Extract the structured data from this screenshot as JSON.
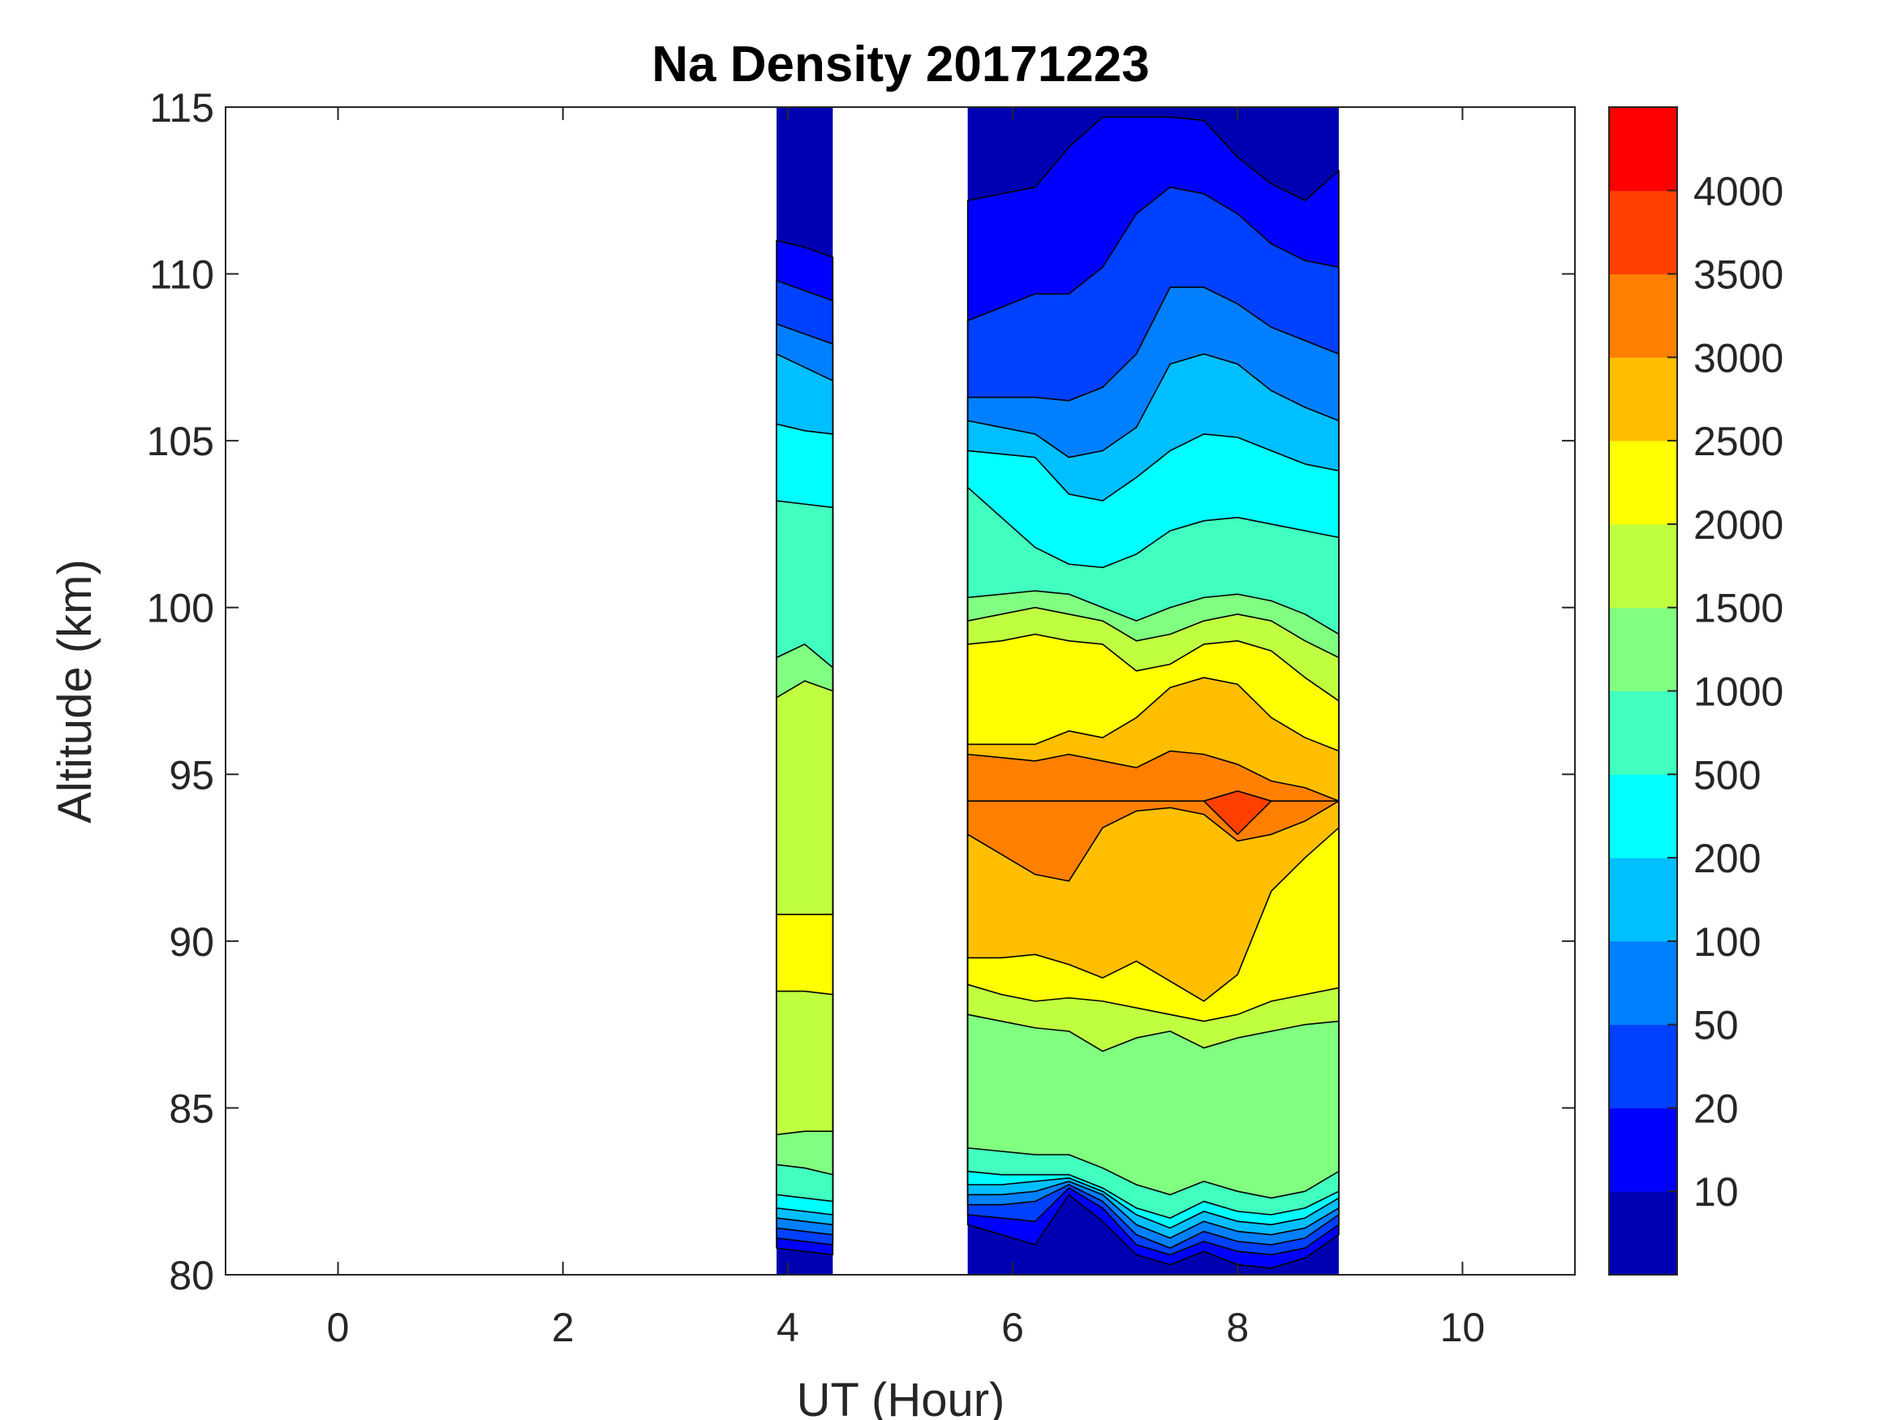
{
  "chart_data": {
    "type": "contourf",
    "title": "Na Density 20171223",
    "xlabel": "UT (Hour)",
    "ylabel": "Altitude (km)",
    "xlim": [
      -1,
      11
    ],
    "ylim": [
      80,
      115
    ],
    "xticks": [
      0,
      2,
      4,
      6,
      8,
      10
    ],
    "xtick_labels": [
      "0",
      "2",
      "4",
      "6",
      "8",
      "10"
    ],
    "yticks": [
      80,
      85,
      90,
      95,
      100,
      105,
      110,
      115
    ],
    "ytick_labels": [
      "80",
      "85",
      "90",
      "95",
      "100",
      "105",
      "110",
      "115"
    ],
    "levels": [
      10,
      20,
      50,
      100,
      200,
      500,
      1000,
      1500,
      2000,
      2500,
      3000,
      3500,
      4000
    ],
    "colorbar_labels": [
      "10",
      "20",
      "50",
      "100",
      "200",
      "500",
      "1000",
      "1500",
      "2000",
      "2500",
      "3000",
      "3500",
      "4000"
    ],
    "colors": [
      "#0000b3",
      "#0000ff",
      "#0040ff",
      "#0080ff",
      "#00bfff",
      "#00ffff",
      "#40ffbf",
      "#80ff80",
      "#bfff40",
      "#ffff00",
      "#ffbf00",
      "#ff8000",
      "#ff4000",
      "#ff0000"
    ],
    "blocks": [
      {
        "times": [
          3.9,
          4.15,
          4.4
        ],
        "peak": [
          89.6,
          89.6,
          89.6
        ],
        "upper_crossings": [
          [
            111,
            110.8,
            110.5
          ],
          [
            109.8,
            109.5,
            109.2
          ],
          [
            108.5,
            108.2,
            107.9
          ],
          [
            107.6,
            107.2,
            106.8
          ],
          [
            105.5,
            105.3,
            105.2
          ],
          [
            103.2,
            103.1,
            103
          ],
          [
            98.5,
            98.9,
            98.2
          ],
          [
            97.3,
            97.8,
            97.5
          ],
          [
            90.8,
            90.8,
            90.8
          ],
          [
            null,
            null,
            null
          ],
          [
            null,
            null,
            null
          ],
          [
            null,
            null,
            null
          ],
          [
            null,
            null,
            null
          ]
        ],
        "lower_crossings": [
          [
            80.8,
            80.7,
            80.6
          ],
          [
            81.1,
            81,
            80.9
          ],
          [
            81.4,
            81.3,
            81.2
          ],
          [
            81.7,
            81.6,
            81.5
          ],
          [
            82,
            81.9,
            81.8
          ],
          [
            82.4,
            82.3,
            82.2
          ],
          [
            83.3,
            83.2,
            83
          ],
          [
            84.2,
            84.3,
            84.3
          ],
          [
            88.5,
            88.5,
            88.4
          ],
          [
            null,
            null,
            null
          ],
          [
            null,
            null,
            null
          ],
          [
            null,
            null,
            null
          ],
          [
            null,
            null,
            null
          ]
        ]
      },
      {
        "times": [
          5.6,
          5.9,
          6.2,
          6.5,
          6.8,
          7.1,
          7.4,
          7.7,
          8.0,
          8.3,
          8.6,
          8.9
        ],
        "peak": [
          94.2,
          94.2,
          94.2,
          94.2,
          94.2,
          94.2,
          94.2,
          94.2,
          94.2,
          94.2,
          94.2,
          94.2
        ],
        "upper_crossings": [
          [
            112.2,
            112.4,
            112.6,
            113.8,
            114.7,
            114.7,
            114.7,
            114.6,
            113.5,
            112.7,
            112.2,
            113.1
          ],
          [
            108.6,
            109,
            109.4,
            109.4,
            110.2,
            111.8,
            112.6,
            112.4,
            111.8,
            110.9,
            110.4,
            110.2
          ],
          [
            106.3,
            106.3,
            106.3,
            106.2,
            106.6,
            107.6,
            109.6,
            109.6,
            109.1,
            108.4,
            108,
            107.6
          ],
          [
            105.6,
            105.4,
            105.2,
            104.5,
            104.7,
            105.4,
            107.3,
            107.6,
            107.3,
            106.5,
            106,
            105.6
          ],
          [
            104.7,
            104.6,
            104.5,
            103.4,
            103.2,
            103.9,
            104.7,
            105.2,
            105.1,
            104.7,
            104.3,
            104.1
          ],
          [
            103.6,
            102.7,
            101.8,
            101.3,
            101.2,
            101.6,
            102.3,
            102.6,
            102.7,
            102.5,
            102.3,
            102.1
          ],
          [
            100.3,
            100.4,
            100.5,
            100.4,
            100,
            99.6,
            100,
            100.3,
            100.4,
            100.2,
            99.8,
            99.2
          ],
          [
            99.6,
            99.8,
            100,
            99.8,
            99.6,
            99,
            99.2,
            99.6,
            99.8,
            99.6,
            99,
            98.5
          ],
          [
            98.9,
            99,
            99.2,
            99,
            98.9,
            98.1,
            98.3,
            98.9,
            99,
            98.7,
            97.9,
            97.2
          ],
          [
            95.9,
            95.9,
            95.9,
            96.3,
            96.1,
            96.7,
            97.6,
            97.9,
            97.7,
            96.7,
            96.1,
            95.7
          ],
          [
            95.6,
            95.5,
            95.4,
            95.6,
            95.4,
            95.2,
            95.7,
            95.6,
            95.3,
            94.8,
            94.6,
            null
          ],
          [
            null,
            null,
            null,
            null,
            null,
            null,
            null,
            null,
            94.5,
            null,
            null,
            null
          ],
          [
            null,
            null,
            null,
            null,
            null,
            null,
            null,
            null,
            null,
            null,
            null,
            null
          ]
        ],
        "lower_crossings": [
          [
            81.5,
            81.2,
            80.9,
            82.4,
            81.6,
            80.6,
            80.3,
            80.7,
            80.3,
            80.2,
            80.5,
            81.2
          ],
          [
            81.8,
            81.7,
            81.6,
            82.6,
            82,
            80.9,
            80.6,
            81,
            80.7,
            80.6,
            80.8,
            81.5
          ],
          [
            82.1,
            82.1,
            82.2,
            82.7,
            82.2,
            81.2,
            80.8,
            81.3,
            81,
            80.9,
            81.1,
            81.8
          ],
          [
            82.4,
            82.4,
            82.5,
            82.8,
            82.4,
            81.5,
            81.1,
            81.6,
            81.3,
            81.2,
            81.4,
            82
          ],
          [
            82.7,
            82.7,
            82.8,
            82.9,
            82.5,
            81.8,
            81.4,
            81.9,
            81.6,
            81.5,
            81.7,
            82.3
          ],
          [
            83.1,
            83,
            83,
            83,
            82.6,
            82,
            81.7,
            82.2,
            81.9,
            81.8,
            82,
            82.5
          ],
          [
            83.8,
            83.7,
            83.6,
            83.6,
            83.2,
            82.7,
            82.4,
            82.8,
            82.5,
            82.3,
            82.5,
            83.1
          ],
          [
            87.8,
            87.6,
            87.4,
            87.3,
            86.7,
            87.1,
            87.3,
            86.8,
            87.1,
            87.3,
            87.5,
            87.6
          ],
          [
            88.7,
            88.4,
            88.2,
            88.3,
            88.2,
            88,
            87.8,
            87.6,
            87.8,
            88.2,
            88.4,
            88.6
          ],
          [
            89.5,
            89.5,
            89.6,
            89.3,
            88.9,
            89.4,
            88.8,
            88.2,
            89,
            91.5,
            92.5,
            93.4
          ],
          [
            93.2,
            92.6,
            92,
            91.8,
            93.4,
            93.9,
            94.0,
            93.8,
            93,
            93.2,
            93.6,
            null
          ],
          [
            null,
            null,
            null,
            null,
            null,
            null,
            null,
            null,
            93.2,
            null,
            null,
            null
          ],
          [
            null,
            null,
            null,
            null,
            null,
            null,
            null,
            null,
            null,
            null,
            null,
            null
          ]
        ]
      }
    ]
  }
}
